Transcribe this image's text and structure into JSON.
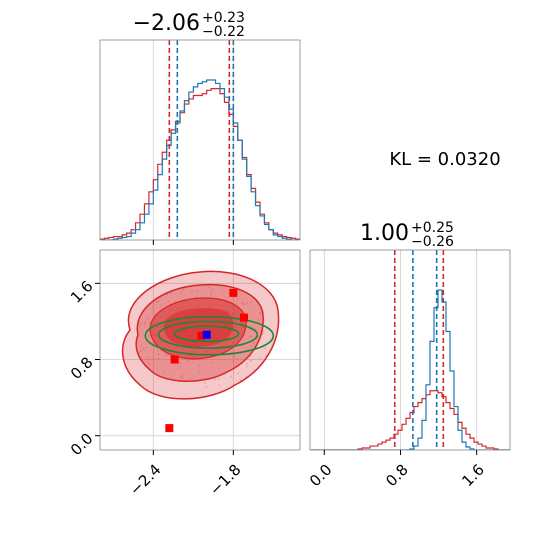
{
  "kl_text": "KL = 0.0320",
  "chart_data": [
    {
      "type": "histogram",
      "panel": "top-left marginal",
      "title_main": "−2.06",
      "title_sup": "+0.23",
      "title_sub": "−0.22",
      "x_range": [
        -2.8,
        -1.3
      ],
      "series": [
        {
          "color": "#d62728",
          "quantiles": [
            -2.28,
            -1.83
          ],
          "counts": [
            0.5,
            1,
            1.5,
            2,
            2,
            3,
            4,
            6,
            10,
            15,
            21,
            28,
            35,
            44,
            51,
            58,
            64,
            69,
            74,
            79,
            82,
            84,
            84,
            85,
            87,
            88,
            88,
            85,
            80,
            73,
            66,
            58,
            48,
            38,
            30,
            22,
            15,
            10,
            6,
            4,
            3,
            2,
            1.5,
            1,
            0.5
          ]
        },
        {
          "color": "#1f77b4",
          "quantiles": [
            -2.22,
            -1.8
          ],
          "counts": [
            0,
            0,
            0,
            0.5,
            1,
            1.5,
            2,
            4,
            6,
            10,
            15,
            21,
            29,
            38,
            47,
            55,
            62,
            68,
            75,
            81,
            86,
            89,
            91,
            92,
            93,
            93,
            91,
            88,
            83,
            76,
            68,
            58,
            47,
            37,
            28,
            20,
            14,
            9,
            6,
            3,
            2,
            1,
            0.5,
            0,
            0
          ]
        }
      ],
      "xticks": [
        -2.4,
        -1.8
      ]
    },
    {
      "type": "contour",
      "panel": "bottom-left 2D",
      "x_range": [
        -2.8,
        -1.3
      ],
      "y_range": [
        -0.15,
        1.95
      ],
      "xticks": [
        -2.4,
        -1.8
      ],
      "xtick_labels": [
        "−2.4",
        "−1.8"
      ],
      "yticks": [
        0.0,
        0.8,
        1.6
      ],
      "ytick_labels": [
        "0.0",
        "0.8",
        "1.6"
      ],
      "red_points": [
        [
          -2.28,
          0.08
        ],
        [
          -1.8,
          1.5
        ],
        [
          -1.72,
          1.24
        ],
        [
          -2.24,
          0.8
        ],
        [
          -2.04,
          1.05
        ]
      ],
      "blue_points": [
        [
          -2.0,
          1.06
        ]
      ],
      "green_ellipses": [
        {
          "center": [
            -1.98,
            1.05
          ],
          "rx": 0.48,
          "ry": 0.2
        },
        {
          "center": [
            -1.99,
            1.06
          ],
          "rx": 0.37,
          "ry": 0.14
        },
        {
          "center": [
            -2.0,
            1.07
          ],
          "rx": 0.24,
          "ry": 0.08
        }
      ]
    },
    {
      "type": "histogram",
      "panel": "bottom-right marginal",
      "title_main": "1.00",
      "title_sup": "+0.25",
      "title_sub": "−0.26",
      "x_range": [
        -0.15,
        1.95
      ],
      "xticks": [
        0.0,
        0.8,
        1.6
      ],
      "xtick_labels": [
        "0.0",
        "0.8",
        "1.6"
      ],
      "series": [
        {
          "color": "#d62728",
          "quantiles": [
            0.74,
            1.25
          ],
          "counts": [
            0,
            0,
            0,
            0,
            0,
            0,
            0,
            0,
            0,
            0,
            0,
            0,
            0.5,
            1,
            1,
            2,
            2,
            3,
            4,
            5,
            6,
            8,
            10,
            13,
            16,
            19,
            22,
            24,
            26,
            28,
            30,
            30,
            29,
            27,
            24,
            21,
            18,
            14,
            11,
            8,
            6,
            4,
            3,
            2,
            1,
            1,
            0.5,
            0,
            0,
            0
          ]
        },
        {
          "color": "#1f77b4",
          "quantiles": [
            0.93,
            1.18
          ],
          "counts": [
            0,
            0,
            0,
            0,
            0,
            0,
            0,
            0,
            0,
            0,
            0,
            0,
            0,
            0,
            0,
            0,
            0,
            0,
            0,
            0,
            0,
            0,
            0,
            0,
            0,
            0.5,
            2,
            6,
            15,
            33,
            55,
            72,
            81,
            75,
            60,
            40,
            22,
            10,
            4,
            1.5,
            0.5,
            0,
            0,
            0,
            0,
            0,
            0,
            0,
            0,
            0
          ]
        }
      ]
    }
  ]
}
